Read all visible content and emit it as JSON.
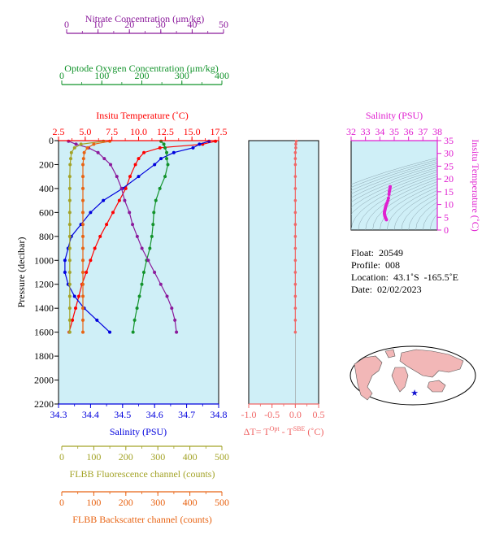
{
  "colors": {
    "nitrate": "#8b1a9b",
    "oxygen": "#12932b",
    "temperature": "#ff0000",
    "salinity": "#0000dd",
    "fluorescence": "#a3a327",
    "backscatter": "#e86414",
    "delta_t": "#f06666",
    "plot_bg": "#cfeff7",
    "magenta": "#e020d0"
  },
  "axes": {
    "nitrate": {
      "title": "Nitrate Concentration (μm/kg)",
      "ticks": [
        "0",
        "10",
        "20",
        "30",
        "40",
        "50"
      ]
    },
    "oxygen": {
      "title": "Optode Oxygen Concentration (μm/kg)",
      "ticks": [
        "0",
        "100",
        "200",
        "300",
        "400"
      ]
    },
    "temperature": {
      "title": "Insitu Temperature (˚C)",
      "ticks": [
        "2.5",
        "5.0",
        "7.5",
        "10.0",
        "12.5",
        "15.0",
        "17.5"
      ]
    },
    "salinity": {
      "title": "Salinity (PSU)",
      "ticks": [
        "34.3",
        "34.4",
        "34.5",
        "34.6",
        "34.7",
        "34.8"
      ]
    },
    "pressure": {
      "title": "Pressure (decibar)",
      "ticks": [
        "0",
        "200",
        "400",
        "600",
        "800",
        "1000",
        "1200",
        "1400",
        "1600",
        "1800",
        "2000",
        "2200"
      ]
    },
    "fluorescence": {
      "title": "FLBB Fluorescence channel (counts)",
      "ticks": [
        "0",
        "100",
        "200",
        "300",
        "400",
        "500"
      ]
    },
    "backscatter": {
      "title": "FLBB Backscatter channel (counts)",
      "ticks": [
        "0",
        "100",
        "200",
        "300",
        "400",
        "500"
      ]
    },
    "delta_t": {
      "title_main": "ΔT= T",
      "sup1": "Opt",
      "title_mid": " - T",
      "sup2": "SBE",
      "title_end": " (˚C)",
      "ticks": [
        "-1.0",
        "-0.5",
        "0.0",
        "0.5"
      ]
    },
    "ts_salinity": {
      "title": "Salinity (PSU)",
      "ticks": [
        "32",
        "33",
        "34",
        "35",
        "36",
        "37",
        "38"
      ]
    },
    "ts_temperature": {
      "title": "Insitu Temperature (˚C)",
      "ticks": [
        "0",
        "5",
        "10",
        "15",
        "20",
        "25",
        "30",
        "35"
      ]
    }
  },
  "info": {
    "float": "Float:  20549",
    "profile": "Profile:  008",
    "location": "Location:  43.1˚S  -165.5˚E",
    "date": "Date:  02/02/2023"
  },
  "chart_data": {
    "type": "line",
    "pressure": [
      5,
      30,
      60,
      100,
      150,
      200,
      300,
      400,
      500,
      600,
      700,
      800,
      900,
      1000,
      1100,
      1200,
      1300,
      1400,
      1500,
      1600
    ],
    "series": [
      {
        "name": "Insitu Temperature",
        "values": [
          17.2,
          16.0,
          12.0,
          10.5,
          10.0,
          9.7,
          9.2,
          8.8,
          8.2,
          7.6,
          7.0,
          6.4,
          5.9,
          5.5,
          5.1,
          4.7,
          4.4,
          4.1,
          3.8,
          3.5
        ]
      },
      {
        "name": "Salinity",
        "values": [
          34.77,
          34.74,
          34.72,
          34.66,
          34.62,
          34.6,
          34.55,
          34.5,
          34.44,
          34.4,
          34.37,
          34.34,
          34.33,
          34.32,
          34.32,
          34.33,
          34.35,
          34.38,
          34.42,
          34.46
        ]
      },
      {
        "name": "Optode Oxygen Concentration",
        "values": [
          248,
          255,
          258,
          262,
          262,
          265,
          258,
          245,
          235,
          230,
          228,
          225,
          220,
          212,
          205,
          200,
          194,
          188,
          182,
          178
        ]
      },
      {
        "name": "Nitrate Concentration",
        "values": [
          0.6,
          3,
          7,
          10,
          12,
          14,
          16,
          17.5,
          18.5,
          20,
          21,
          22.5,
          24,
          26,
          28,
          30,
          32,
          33.5,
          34.5,
          35
        ]
      },
      {
        "name": "FLBB Fluorescence channel",
        "values": [
          130,
          60,
          40,
          30,
          28,
          26,
          25,
          25,
          25,
          25,
          25,
          25,
          25,
          25,
          25,
          25,
          25,
          25,
          25,
          25
        ]
      },
      {
        "name": "FLBB Backscatter channel",
        "values": [
          150,
          100,
          80,
          70,
          68,
          66,
          66,
          66,
          66,
          66,
          66,
          66,
          66,
          66,
          66,
          66,
          66,
          66,
          66,
          66
        ]
      },
      {
        "name": "ΔT",
        "values": [
          0.02,
          0.01,
          0.01,
          0.0,
          0.0,
          0.0,
          0.0,
          0.0,
          0.0,
          0.0,
          0.0,
          0.0,
          0.0,
          0.0,
          0.0,
          0.0,
          0.0,
          0.0,
          0.0,
          0.0
        ]
      }
    ],
    "ylim": [
      2200,
      0
    ],
    "ts_diagram": {
      "salinity": [
        34.72,
        34.7,
        34.68,
        34.66,
        34.64,
        34.6,
        34.56,
        34.5,
        34.46,
        34.42,
        34.4,
        34.38,
        34.36,
        34.34,
        34.32,
        34.32,
        34.33,
        34.35,
        34.38,
        34.42,
        34.46
      ],
      "temperature": [
        17.0,
        16.2,
        15.6,
        15.0,
        14.0,
        12.5,
        11.5,
        10.6,
        10.0,
        9.5,
        9.0,
        8.5,
        8.0,
        7.5,
        7.0,
        6.5,
        6.0,
        5.5,
        5.0,
        4.5,
        4.0
      ],
      "xlim": [
        32,
        38
      ],
      "ylim": [
        0,
        35
      ]
    }
  }
}
